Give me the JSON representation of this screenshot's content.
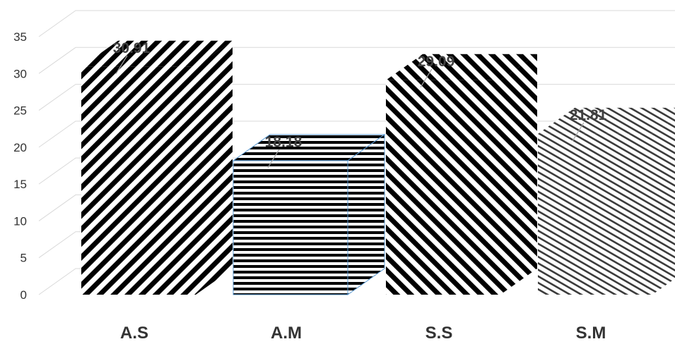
{
  "chart_data": {
    "type": "bar",
    "style": "3d-column",
    "categories": [
      "A.S",
      "A.M",
      "S.S",
      "S.M"
    ],
    "values": [
      30.91,
      18.18,
      29.09,
      21.81
    ],
    "data_labels": [
      "30.91",
      "18.18",
      "29.09",
      "21.81"
    ],
    "patterns": [
      "diagonal-down",
      "horizontal",
      "diagonal-up",
      "diagonal-up-fine"
    ],
    "ylim": [
      0,
      35
    ],
    "yticks": [
      0,
      5,
      10,
      15,
      20,
      25,
      30,
      35
    ],
    "ytick_labels": [
      "0",
      "5",
      "10",
      "15",
      "20",
      "25",
      "30",
      "35"
    ],
    "grid": true,
    "legend": "none"
  }
}
